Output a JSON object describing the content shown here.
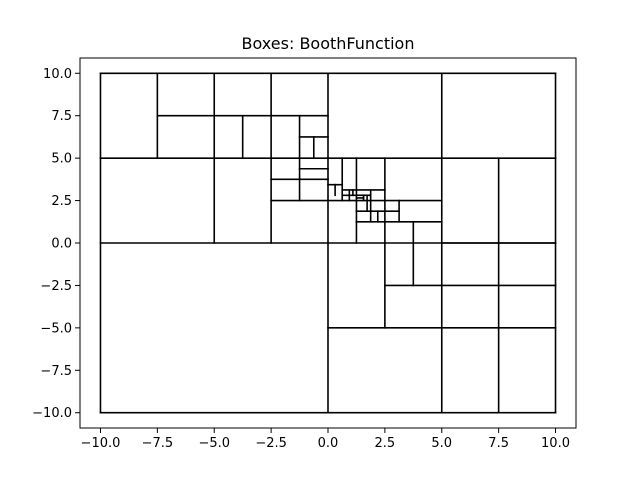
{
  "chart_data": {
    "type": "boxes",
    "title": "Boxes: BoothFunction",
    "xlabel": "",
    "ylabel": "",
    "xlim": [
      -10.9,
      10.9
    ],
    "ylim": [
      -10.9,
      10.9
    ],
    "xticks": [
      -10,
      -7.5,
      -5,
      -2.5,
      0,
      2.5,
      5,
      7.5,
      10
    ],
    "xtick_labels": [
      "−10.0",
      "−7.5",
      "−5.0",
      "−2.5",
      "0.0",
      "2.5",
      "5.0",
      "7.5",
      "10.0"
    ],
    "yticks": [
      -10,
      -7.5,
      -5,
      -2.5,
      0,
      2.5,
      5,
      7.5,
      10
    ],
    "ytick_labels": [
      "−10.0",
      "−7.5",
      "−5.0",
      "−2.5",
      "0.0",
      "2.5",
      "5.0",
      "7.5",
      "10.0"
    ],
    "grid": false,
    "box_color": "#000000",
    "segments": [
      [
        -10,
        -10,
        10,
        -10
      ],
      [
        -10,
        10,
        10,
        10
      ],
      [
        -10,
        -10,
        -10,
        10
      ],
      [
        10,
        -10,
        10,
        10
      ],
      [
        0,
        -10,
        0,
        10
      ],
      [
        -10,
        0,
        10,
        0
      ],
      [
        -10,
        5,
        10,
        5
      ],
      [
        -5,
        0,
        -5,
        10
      ],
      [
        -7.5,
        5,
        -7.5,
        10
      ],
      [
        -7.5,
        7.5,
        0,
        7.5
      ],
      [
        -2.5,
        0,
        -2.5,
        10
      ],
      [
        -3.75,
        5,
        -3.75,
        7.5
      ],
      [
        -1.25,
        5,
        -1.25,
        7.5
      ],
      [
        -1.25,
        6.25,
        0,
        6.25
      ],
      [
        -0.625,
        5,
        -0.625,
        6.25
      ],
      [
        5,
        -10,
        5,
        10
      ],
      [
        -2.5,
        2.5,
        5,
        2.5
      ],
      [
        -2.5,
        3.75,
        0,
        3.75
      ],
      [
        -1.25,
        2.5,
        -1.25,
        5
      ],
      [
        -1.25,
        4.375,
        0,
        4.375
      ],
      [
        0.625,
        2.5,
        0.625,
        5
      ],
      [
        1.25,
        0,
        1.25,
        5
      ],
      [
        2.5,
        -5,
        2.5,
        5
      ],
      [
        1.25,
        1.25,
        5,
        1.25
      ],
      [
        3.125,
        1.25,
        3.125,
        2.5
      ],
      [
        1.875,
        1.25,
        1.875,
        3.125
      ],
      [
        1.25,
        1.875,
        3.125,
        1.875
      ],
      [
        2.1875,
        1.25,
        2.1875,
        1.875
      ],
      [
        1.25,
        3.125,
        2.5,
        3.125
      ],
      [
        0,
        3.4375,
        0.625,
        3.4375
      ],
      [
        0.3125,
        2.8125,
        0.3125,
        3.4375
      ],
      [
        0.625,
        3.125,
        1.25,
        3.125
      ],
      [
        0.625,
        2.8125,
        1.25,
        2.8125
      ],
      [
        0.9375,
        2.5,
        0.9375,
        3.125
      ],
      [
        1.09375,
        2.8125,
        1.09375,
        3.125
      ],
      [
        1.25,
        2.8125,
        1.875,
        2.8125
      ],
      [
        1.5625,
        2.5,
        1.5625,
        2.8125
      ],
      [
        1.25,
        2.65625,
        1.5625,
        2.65625
      ],
      [
        1.71875,
        1.875,
        1.71875,
        2.8125
      ],
      [
        3.75,
        -2.5,
        3.75,
        1.25
      ],
      [
        2.5,
        -2.5,
        10,
        -2.5
      ],
      [
        0,
        -5,
        10,
        -5
      ],
      [
        7.5,
        -10,
        7.5,
        5
      ],
      [
        5,
        0,
        10,
        0
      ]
    ]
  }
}
